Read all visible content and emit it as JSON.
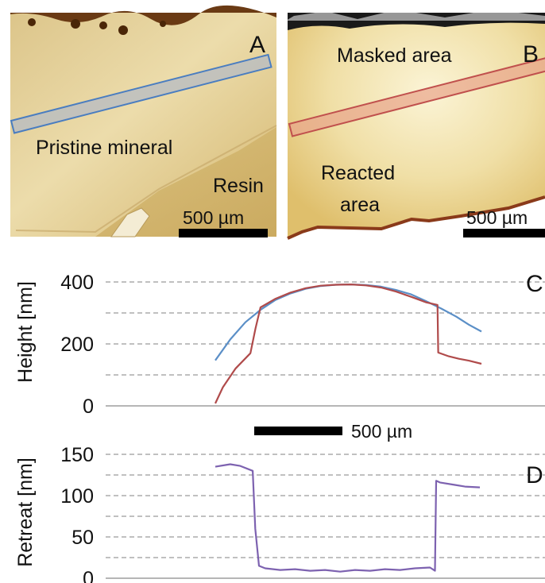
{
  "panels": {
    "a": {
      "letter": "A",
      "labels": {
        "pristine": "Pristine mineral",
        "resin": "Resin"
      },
      "scalebar": "500 µm"
    },
    "b": {
      "letter": "B",
      "labels": {
        "masked": "Masked area",
        "reacted_line1": "Reacted",
        "reacted_line2": "area"
      },
      "scalebar": "500 µm"
    }
  },
  "chart_data": [
    {
      "panel": "C",
      "type": "line",
      "ylabel": "Height [nm]",
      "ylim": [
        0,
        400
      ],
      "yticks": [
        0,
        200,
        400
      ],
      "grid": "horizontal dashed every 100",
      "x_unit": "µm",
      "scalebar": "500 µm",
      "series": [
        {
          "color": "#5b8fc7",
          "x": [
            0,
            60,
            120,
            180,
            240,
            300,
            360,
            420,
            480,
            540,
            600,
            660,
            720,
            780,
            840,
            900,
            960,
            1010,
            1060
          ],
          "y": [
            147,
            215,
            270,
            310,
            342,
            363,
            378,
            387,
            391,
            392,
            390,
            385,
            374,
            360,
            338,
            314,
            288,
            262,
            240
          ]
        },
        {
          "color": "#b04b4b",
          "x": [
            0,
            30,
            80,
            140,
            160,
            180,
            240,
            300,
            360,
            420,
            480,
            540,
            600,
            660,
            720,
            780,
            840,
            885,
            888,
            930,
            970,
            1010,
            1060
          ],
          "y": [
            8,
            60,
            120,
            170,
            250,
            318,
            346,
            366,
            380,
            388,
            391,
            392,
            389,
            382,
            369,
            352,
            334,
            326,
            172,
            160,
            152,
            146,
            136
          ]
        }
      ]
    },
    {
      "panel": "D",
      "type": "line",
      "ylabel": "Retreat [nm]",
      "ylim": [
        0,
        150
      ],
      "yticks": [
        0,
        50,
        100,
        150
      ],
      "grid": "horizontal dashed every 25",
      "x_unit": "µm",
      "series": [
        {
          "color": "#7d62b0",
          "x": [
            0,
            40,
            60,
            100,
            150,
            160,
            175,
            200,
            260,
            320,
            380,
            440,
            500,
            560,
            620,
            680,
            740,
            800,
            860,
            880,
            885,
            900,
            960,
            1000,
            1060
          ],
          "y": [
            135,
            137,
            138,
            136,
            130,
            60,
            15,
            12,
            10,
            11,
            9,
            10,
            8,
            10,
            9,
            11,
            10,
            12,
            13,
            9,
            118,
            116,
            113,
            111,
            110
          ]
        }
      ]
    }
  ]
}
